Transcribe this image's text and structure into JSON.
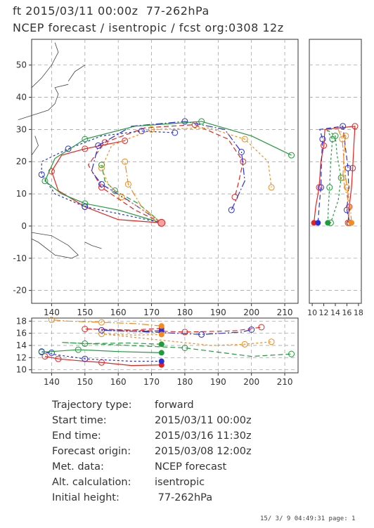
{
  "header": {
    "line1": "ft 2015/03/11 00:00z  77-262hPa",
    "line2": "NCEP forecast / isentropic / fcst org:0308 12z"
  },
  "info": [
    {
      "label": "Trajectory type:",
      "value": "forward"
    },
    {
      "label": "Start time:",
      "value": "2015/03/11 00:00z"
    },
    {
      "label": "End time:",
      "value": "2015/03/16 11:30z"
    },
    {
      "label": "Forecast origin:",
      "value": "2015/03/08 12:00z"
    },
    {
      "label": "Met. data:",
      "value": "NCEP forecast"
    },
    {
      "label": "Alt. calculation:",
      "value": "isentropic"
    },
    {
      "label": "Initial height:",
      "value": " 77-262hPa"
    }
  ],
  "footer": "15/ 3/ 9 04:49:31 page: 1",
  "chart_data": [
    {
      "type": "line",
      "panel": "map",
      "x_ticks": [
        "140",
        "150",
        "160",
        "170",
        "180",
        "190",
        "200",
        "210"
      ],
      "y_ticks": [
        "50",
        "40",
        "30",
        "20",
        "10",
        "0",
        "-10",
        "-20"
      ],
      "xlim": [
        134,
        214
      ],
      "ylim": [
        -24,
        58
      ],
      "grid": true,
      "source": [
        173,
        1
      ],
      "series": [
        {
          "color": "#e8231c",
          "points": [
            [
              173,
              1
            ],
            [
              160,
              2
            ],
            [
              150,
              6
            ],
            [
              142,
              11
            ],
            [
              140,
              17
            ],
            [
              143,
              22
            ],
            [
              150,
              24
            ],
            [
              162,
              26.5
            ]
          ]
        },
        {
          "color": "#e8231c",
          "points": [
            [
              173,
              1
            ],
            [
              165,
              5
            ],
            [
              155,
              12
            ],
            [
              151,
              19
            ],
            [
              156,
              26
            ],
            [
              168,
              30.5
            ],
            [
              183,
              31.5
            ],
            [
              193,
              27
            ],
            [
              197.5,
              20
            ],
            [
              196,
              13
            ],
            [
              195,
              9
            ]
          ]
        },
        {
          "color": "#2930d8",
          "points": [
            [
              173,
              1
            ],
            [
              164,
              3
            ],
            [
              150,
              6
            ],
            [
              141,
              10
            ],
            [
              137,
              16
            ],
            [
              137,
              20
            ],
            [
              145,
              24
            ],
            [
              155,
              28
            ],
            [
              167,
              29.5
            ],
            [
              177,
              29
            ]
          ]
        },
        {
          "color": "#2930d8",
          "points": [
            [
              173,
              1
            ],
            [
              163,
              8
            ],
            [
              155,
              13
            ],
            [
              152,
              17
            ],
            [
              154,
              25
            ],
            [
              164,
              31
            ],
            [
              180,
              32.5
            ],
            [
              192,
              30
            ],
            [
              197,
              23
            ],
            [
              198,
              14
            ],
            [
              194,
              5
            ]
          ]
        },
        {
          "color": "#1f9b3a",
          "points": [
            [
              173,
              1
            ],
            [
              160,
              5
            ],
            [
              150,
              7
            ],
            [
              143,
              10
            ],
            [
              138,
              14
            ],
            [
              141,
              21
            ],
            [
              150,
              27
            ],
            [
              165,
              31
            ],
            [
              185,
              32.5
            ],
            [
              200,
              28
            ],
            [
              212,
              22
            ]
          ]
        },
        {
          "color": "#1f9b3a",
          "points": [
            [
              173,
              1
            ],
            [
              166,
              7
            ],
            [
              159,
              11
            ],
            [
              156,
              14
            ],
            [
              155,
              19
            ]
          ]
        },
        {
          "color": "#f58a1f",
          "points": [
            [
              173,
              1
            ],
            [
              166,
              6
            ],
            [
              161,
              9
            ],
            [
              157,
              13
            ],
            [
              155,
              18
            ],
            [
              158,
              25
            ],
            [
              170,
              30
            ],
            [
              187,
              30.5
            ],
            [
              198,
              27
            ],
            [
              205,
              20
            ],
            [
              206,
              12
            ]
          ]
        },
        {
          "color": "#f58a1f",
          "points": [
            [
              173,
              1
            ],
            [
              167,
              6
            ],
            [
              163,
              13
            ],
            [
              162,
              20
            ]
          ]
        }
      ]
    },
    {
      "type": "line",
      "panel": "side-latitude-height",
      "x_ticks": [
        "10",
        "12",
        "14",
        "16",
        "18"
      ],
      "xlim": [
        9.5,
        18.5
      ],
      "ylim": [
        -24,
        58
      ],
      "series": [
        {
          "color": "#e8231c",
          "points": [
            [
              10.3,
              1
            ],
            [
              10.6,
              6
            ],
            [
              11.2,
              12
            ],
            [
              11.5,
              20
            ],
            [
              12.0,
              25
            ],
            [
              12.2,
              30
            ],
            [
              17.4,
              31
            ],
            [
              17.2,
              25
            ],
            [
              17.0,
              18
            ],
            [
              16.8,
              12
            ],
            [
              16.4,
              6
            ],
            [
              16.2,
              1
            ]
          ]
        },
        {
          "color": "#2930d8",
          "points": [
            [
              11.0,
              1
            ],
            [
              11.2,
              6
            ],
            [
              11.5,
              12
            ],
            [
              11.6,
              20
            ],
            [
              11.8,
              27
            ],
            [
              11.3,
              30
            ],
            [
              15.3,
              31
            ],
            [
              15.7,
              25
            ],
            [
              16.2,
              18
            ],
            [
              16.3,
              12
            ],
            [
              16.0,
              5
            ],
            [
              16.5,
              1
            ]
          ]
        },
        {
          "color": "#1f9b3a",
          "points": [
            [
              12.7,
              1
            ],
            [
              12.8,
              6
            ],
            [
              13.0,
              12
            ],
            [
              13.2,
              20
            ],
            [
              13.5,
              27
            ],
            [
              12.5,
              30
            ],
            [
              14.0,
              28
            ],
            [
              14.3,
              22
            ],
            [
              15.0,
              15
            ],
            [
              14.5,
              8
            ],
            [
              13.2,
              1
            ]
          ]
        },
        {
          "color": "#f58a1f",
          "points": [
            [
              16.8,
              1
            ],
            [
              16.6,
              6
            ],
            [
              16.0,
              12
            ],
            [
              15.5,
              20
            ],
            [
              15.2,
              27
            ],
            [
              14.5,
              30
            ],
            [
              15.8,
              28
            ],
            [
              15.5,
              22
            ],
            [
              15.3,
              15
            ],
            [
              16.2,
              8
            ],
            [
              16.4,
              1
            ]
          ]
        }
      ]
    },
    {
      "type": "line",
      "panel": "bottom-longitude-height",
      "x_ticks": [
        "140",
        "150",
        "160",
        "170",
        "180",
        "190",
        "200",
        "210"
      ],
      "y_ticks": [
        "18",
        "16",
        "14",
        "12",
        "10"
      ],
      "xlim": [
        134,
        214
      ],
      "ylim": [
        9.5,
        18.5
      ],
      "series": [
        {
          "color": "#e8231c",
          "points": [
            [
              173,
              10.8
            ],
            [
              164,
              10.7
            ],
            [
              155,
              11.2
            ],
            [
              148,
              11.5
            ],
            [
              142,
              11.8
            ],
            [
              138,
              12.2
            ]
          ]
        },
        {
          "color": "#e8231c",
          "points": [
            [
              173,
              16.8
            ],
            [
              163,
              16.5
            ],
            [
              150,
              16.7
            ],
            [
              160,
              16.6
            ],
            [
              180,
              16.2
            ],
            [
              195,
              16.4
            ],
            [
              203,
              17.0
            ]
          ]
        },
        {
          "color": "#2930d8",
          "points": [
            [
              173,
              11.4
            ],
            [
              164,
              11.4
            ],
            [
              150,
              11.8
            ],
            [
              141,
              12.5
            ],
            [
              137,
              13.0
            ],
            [
              140,
              12.8
            ]
          ]
        },
        {
          "color": "#2930d8",
          "points": [
            [
              173,
              16.4
            ],
            [
              165,
              16.3
            ],
            [
              155,
              16.5
            ],
            [
              170,
              16.2
            ],
            [
              185,
              15.8
            ],
            [
              197,
              16.2
            ],
            [
              200,
              16.6
            ]
          ]
        },
        {
          "color": "#1f9b3a",
          "points": [
            [
              173,
              12.8
            ],
            [
              160,
              13.0
            ],
            [
              148,
              13.3
            ],
            [
              140,
              13.0
            ],
            [
              137,
              12.9
            ]
          ]
        },
        {
          "color": "#1f9b3a",
          "points": [
            [
              173,
              14.2
            ],
            [
              163,
              14.4
            ],
            [
              150,
              14.3
            ],
            [
              143,
              14.5
            ],
            [
              180,
              13.6
            ],
            [
              200,
              12.2
            ],
            [
              212,
              12.6
            ]
          ]
        },
        {
          "color": "#f58a1f",
          "points": [
            [
              173,
              15.8
            ],
            [
              165,
              15.7
            ],
            [
              155,
              15.9
            ],
            [
              188,
              14.0
            ],
            [
              198,
              14.2
            ],
            [
              206,
              14.6
            ]
          ]
        },
        {
          "color": "#f58a1f",
          "points": [
            [
              173,
              17.2
            ],
            [
              165,
              17.6
            ],
            [
              155,
              17.8
            ],
            [
              145,
              18.0
            ],
            [
              140,
              18.2
            ]
          ]
        }
      ]
    }
  ]
}
